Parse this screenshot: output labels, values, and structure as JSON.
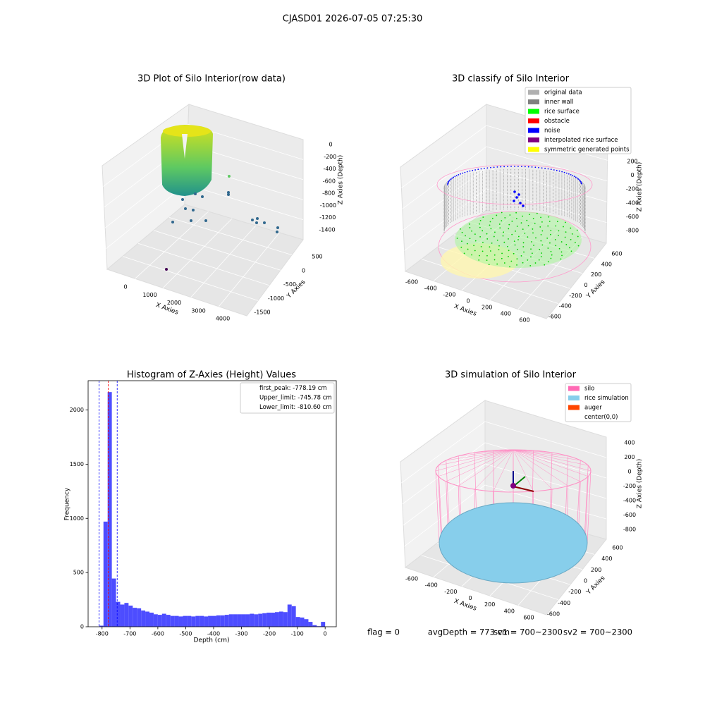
{
  "title": "CJASD01 2026-07-05 07:25:30",
  "footer": [
    "flag = 0",
    "avgDepth = 773 cm",
    "sv1 = 700~2300",
    "sv2 = 700~2300"
  ],
  "chart_data": [
    {
      "type": "scatter3d",
      "title": "3D Plot of Silo Interior(row data)",
      "xlabel": "X Axies",
      "ylabel": "Y Axies",
      "zlabel": "Z Axies (Depth)",
      "xticks": [
        0,
        1000,
        2000,
        3000,
        4000
      ],
      "yticks": [
        500,
        0,
        -500,
        -1000,
        -1500
      ],
      "zticks": [
        0,
        -200,
        -400,
        -600,
        -800,
        -1000,
        -1200,
        -1400
      ]
    },
    {
      "type": "scatter3d",
      "title": "3D classify of Silo Interior",
      "xlabel": "X Axies",
      "ylabel": "Y Axies",
      "zlabel": "Z Axies (Depth)",
      "xticks": [
        -600,
        -400,
        -200,
        0,
        200,
        400,
        600
      ],
      "yticks": [
        600,
        400,
        200,
        0,
        -200,
        -400,
        -600
      ],
      "zticks": [
        200,
        0,
        -200,
        -400,
        -600,
        -800
      ],
      "legend": [
        {
          "name": "original data",
          "color": "#b0b0b0"
        },
        {
          "name": "inner wall",
          "color": "#808080"
        },
        {
          "name": "rice surface",
          "color": "#00ff00"
        },
        {
          "name": "obstacle",
          "color": "#ff0000"
        },
        {
          "name": "noise",
          "color": "#0000ff"
        },
        {
          "name": "interpolated rice surface",
          "color": "#800080"
        },
        {
          "name": "symmetric generated points",
          "color": "#ffff00"
        }
      ]
    },
    {
      "type": "histogram",
      "title": "Histogram of Z-Axies (Height) Values",
      "xlabel": "Depth (cm)",
      "ylabel": "Frequency",
      "color": "#4d4dff",
      "bins": [
        -810,
        -795,
        -780,
        -765,
        -750,
        -735,
        -720,
        -705,
        -690,
        -675,
        -660,
        -645,
        -630,
        -615,
        -600,
        -585,
        -570,
        -555,
        -540,
        -525,
        -510,
        -495,
        -480,
        -465,
        -450,
        -435,
        -420,
        -405,
        -390,
        -375,
        -360,
        -345,
        -330,
        -315,
        -300,
        -285,
        -270,
        -255,
        -240,
        -225,
        -210,
        -195,
        -180,
        -165,
        -150,
        -135,
        -120,
        -105,
        -90,
        -75,
        -60,
        -45,
        -30,
        -15,
        0
      ],
      "counts": [
        10,
        970,
        2165,
        445,
        230,
        205,
        220,
        195,
        175,
        170,
        150,
        140,
        130,
        115,
        110,
        120,
        110,
        100,
        100,
        95,
        100,
        100,
        95,
        100,
        100,
        95,
        100,
        100,
        105,
        105,
        110,
        115,
        115,
        115,
        115,
        115,
        120,
        115,
        120,
        125,
        130,
        130,
        135,
        140,
        135,
        205,
        190,
        90,
        85,
        70,
        45,
        15,
        5,
        45
      ],
      "xlim": [
        -850,
        40
      ],
      "ylim": [
        0,
        2270
      ],
      "xticks": [
        -800,
        -700,
        -600,
        -500,
        -400,
        -300,
        -200,
        -100,
        0
      ],
      "yticks": [
        0,
        500,
        1000,
        1500,
        2000
      ],
      "vlines": [
        {
          "value": -778.19,
          "label": "first_peak: -778.19 cm",
          "color": "#ff0000"
        },
        {
          "value": -745.78,
          "label": "Upper_limit: -745.78 cm",
          "color": "#0000ff"
        },
        {
          "value": -810.6,
          "label": "Lower_limit: -810.60 cm",
          "color": "#0000ff"
        }
      ]
    },
    {
      "type": "scatter3d",
      "title": "3D simulation of Silo Interior",
      "xlabel": "X Axies",
      "ylabel": "Y Axies",
      "zlabel": "Z Axies (Depth)",
      "xticks": [
        -600,
        -400,
        -200,
        0,
        200,
        400,
        600
      ],
      "yticks": [
        600,
        400,
        200,
        0,
        -200,
        -400,
        -600
      ],
      "zticks": [
        400,
        200,
        0,
        -200,
        -400,
        -600,
        -800
      ],
      "legend": [
        {
          "name": "silo",
          "color": "#ff69b4"
        },
        {
          "name": "rice simulation",
          "color": "#87ceeb"
        },
        {
          "name": "auger",
          "color": "#ff4500"
        },
        {
          "name": "center(0,0)",
          "color": "#ffffff"
        }
      ]
    }
  ]
}
